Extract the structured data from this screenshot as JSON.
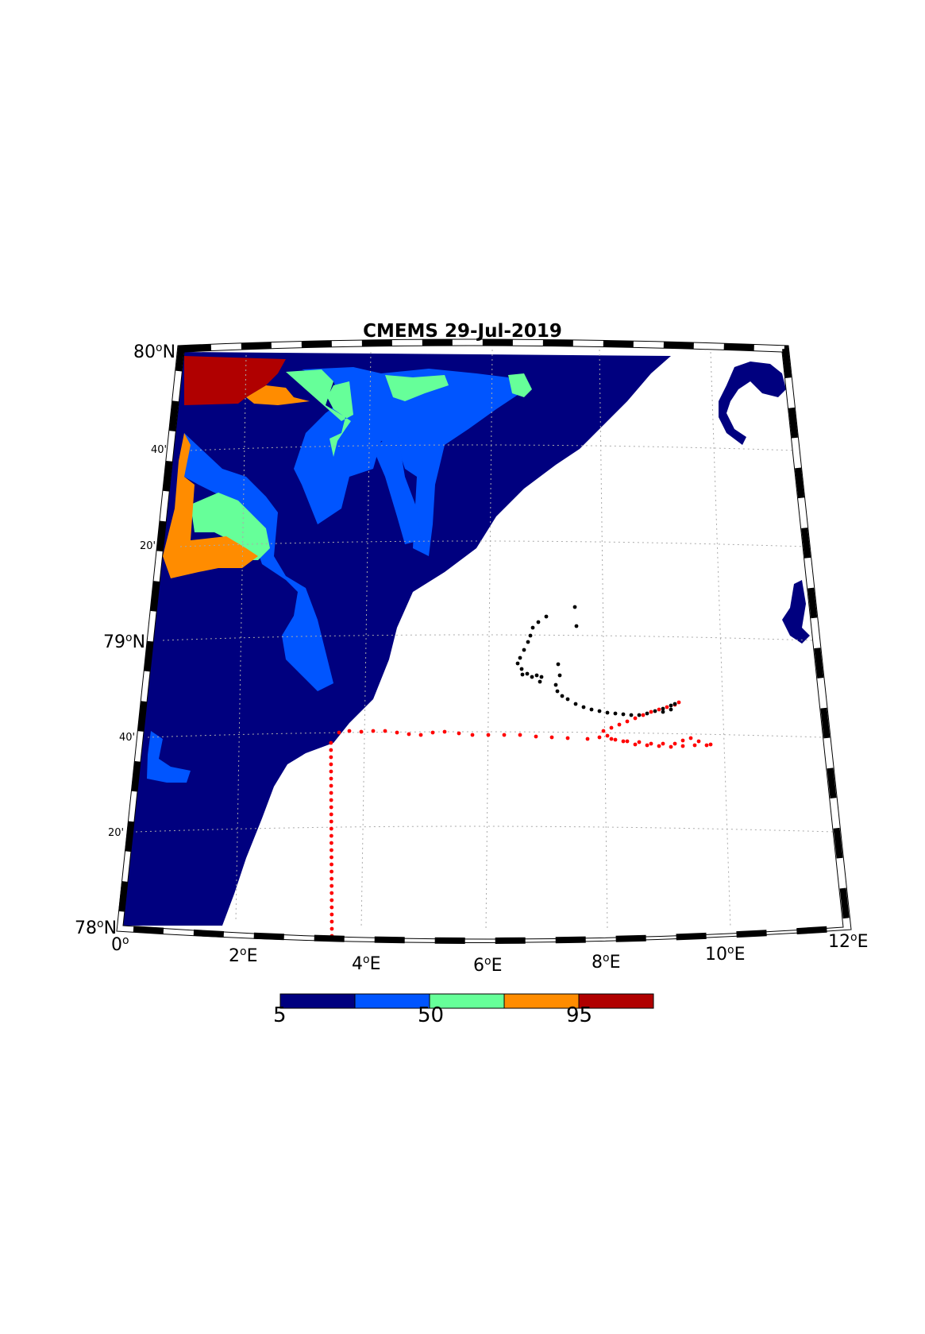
{
  "title": "CMEMS 29-Jul-2019",
  "lat_labels": [
    {
      "text": "80°N",
      "deg": "80",
      "suffix": "N"
    },
    {
      "text": "40'",
      "deg": "",
      "suffix": ""
    },
    {
      "text": "20'",
      "deg": "",
      "suffix": ""
    },
    {
      "text": "79°N",
      "deg": "79",
      "suffix": "N"
    },
    {
      "text": "40'",
      "deg": "",
      "suffix": ""
    },
    {
      "text": "20'",
      "deg": "",
      "suffix": ""
    },
    {
      "text": "78°N",
      "deg": "78",
      "suffix": "N"
    }
  ],
  "lon_labels": [
    {
      "deg": "0",
      "suffix": ""
    },
    {
      "deg": "2",
      "suffix": "E"
    },
    {
      "deg": "4",
      "suffix": "E"
    },
    {
      "deg": "6",
      "suffix": "E"
    },
    {
      "deg": "8",
      "suffix": "E"
    },
    {
      "deg": "10",
      "suffix": "E"
    },
    {
      "deg": "12",
      "suffix": "E"
    }
  ],
  "colorbar": {
    "ticks": [
      "5",
      "50",
      "95"
    ],
    "colors": [
      "#00007f",
      "#0055ff",
      "#66ff99",
      "#ff8c00",
      "#b00000"
    ]
  },
  "colors": {
    "land_free": "#ffffff",
    "track_red": "#ff0000",
    "track_black": "#000000",
    "grid": "#aaaaaa"
  }
}
